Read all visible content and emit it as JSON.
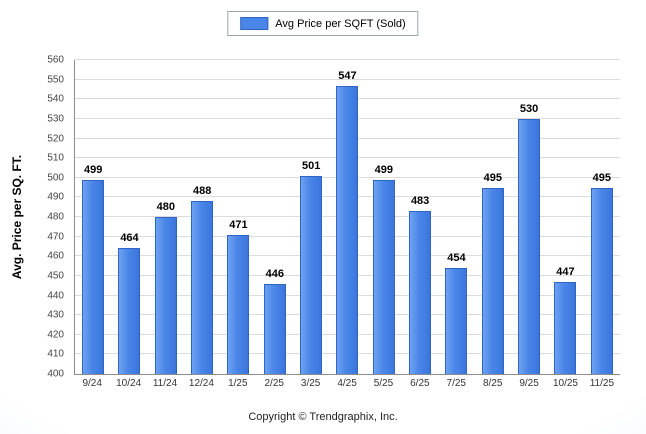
{
  "legend": {
    "label": "Avg Price per SQFT (Sold)"
  },
  "footer": {
    "text": "Copyright © Trendgraphix, Inc."
  },
  "colors": {
    "bar": "#4a86e8",
    "bar_border": "#2f63c6",
    "grid": "#dcdcdc",
    "axis": "#8c8c8c"
  },
  "chart_data": {
    "type": "bar",
    "title": "Avg Price per SQFT (Sold)",
    "categories": [
      "9/24",
      "10/24",
      "11/24",
      "12/24",
      "1/25",
      "2/25",
      "3/25",
      "4/25",
      "5/25",
      "6/25",
      "7/25",
      "8/25",
      "9/25",
      "10/25",
      "11/25"
    ],
    "values": [
      499,
      464,
      480,
      488,
      471,
      446,
      501,
      547,
      499,
      483,
      454,
      495,
      530,
      447,
      495
    ],
    "xlabel": "",
    "ylabel": "Avg. Price per SQ. FT.",
    "ylim": [
      400,
      560
    ],
    "ytick_step": 10,
    "grid": true,
    "legend_position": "top"
  }
}
